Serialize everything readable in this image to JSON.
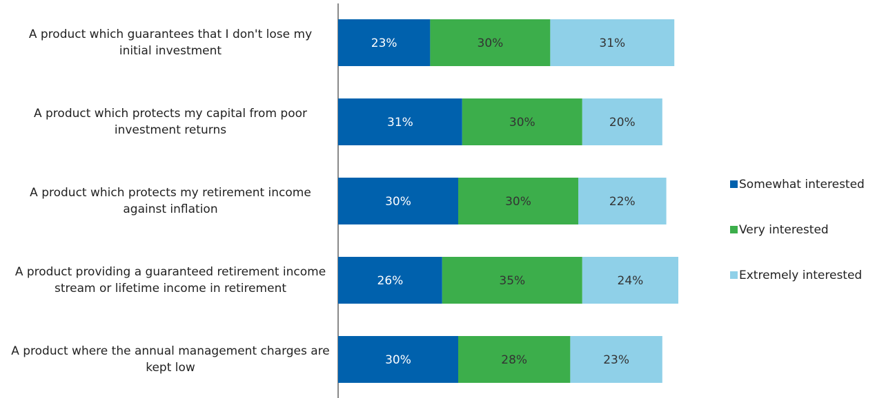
{
  "chart_data": {
    "type": "stacked-bar-horizontal",
    "categories": [
      "A product which guarantees that I don't lose my initial investment",
      "A product which protects my capital from poor investment returns",
      "A product which protects my retirement income against inflation",
      "A product providing a guaranteed retirement income stream or lifetime income in retirement",
      "A product where the annual management charges are kept low"
    ],
    "series": [
      {
        "name": "Somewhat interested",
        "color": "#0061ad",
        "label_color": "#ffffff",
        "values": [
          23,
          31,
          30,
          26,
          30
        ],
        "value_labels": [
          "23%",
          "31%",
          "30%",
          "26%",
          "30%"
        ]
      },
      {
        "name": "Very interested",
        "color": "#3cae4b",
        "label_color": "#333333",
        "values": [
          30,
          30,
          30,
          35,
          28
        ],
        "value_labels": [
          "30%",
          "30%",
          "30%",
          "35%",
          "28%"
        ]
      },
      {
        "name": "Extremely interested",
        "color": "#8fd0e8",
        "label_color": "#333333",
        "values": [
          31,
          20,
          22,
          24,
          23
        ],
        "value_labels": [
          "31%",
          "20%",
          "22%",
          "24%",
          "23%"
        ]
      }
    ],
    "xlim": [
      0,
      100
    ],
    "legend": "right"
  }
}
